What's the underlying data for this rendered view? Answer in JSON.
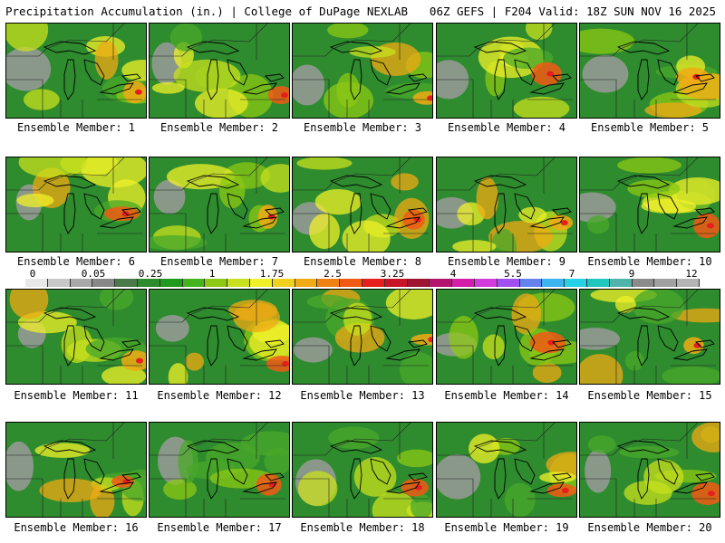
{
  "header": {
    "title": "Precipitation Accumulation (in.) | College of DuPage NEXLAB",
    "run_info": "06Z GEFS | F204 Valid: 18Z SUN NOV 16 2025"
  },
  "colorbar": {
    "labels": [
      "0",
      "0.05",
      "0.25",
      "1",
      "1.75",
      "2.5",
      "3.25",
      "4",
      "5.5",
      "7",
      "9",
      "12"
    ],
    "colors": [
      "#e8e8e8",
      "#c8c8c8",
      "#a8a8a8",
      "#888888",
      "#4a7a4a",
      "#2e8b2e",
      "#1e9a1e",
      "#46b41e",
      "#8cc814",
      "#c8e01e",
      "#f0f028",
      "#f0d21e",
      "#f0aa14",
      "#f08214",
      "#f05a14",
      "#e61e1e",
      "#c81428",
      "#a01432",
      "#b4146e",
      "#d21eaa",
      "#d23cdc",
      "#a050f0",
      "#6482f0",
      "#3cb4f0",
      "#28d2e6",
      "#1ec8be",
      "#50b4aa",
      "#8c8c8c",
      "#a0a0a0",
      "#b4b4b4"
    ]
  },
  "panels": [
    {
      "caption": "Ensemble Member: 1"
    },
    {
      "caption": "Ensemble Member: 2"
    },
    {
      "caption": "Ensemble Member: 3"
    },
    {
      "caption": "Ensemble Member: 4"
    },
    {
      "caption": "Ensemble Member: 5"
    },
    {
      "caption": "Ensemble Member: 6"
    },
    {
      "caption": "Ensemble Member: 7"
    },
    {
      "caption": "Ensemble Member: 8"
    },
    {
      "caption": "Ensemble Member: 9"
    },
    {
      "caption": "Ensemble Member: 10"
    },
    {
      "caption": "Ensemble Member: 11"
    },
    {
      "caption": "Ensemble Member: 12"
    },
    {
      "caption": "Ensemble Member: 13"
    },
    {
      "caption": "Ensemble Member: 14"
    },
    {
      "caption": "Ensemble Member: 15"
    },
    {
      "caption": "Ensemble Member: 16"
    },
    {
      "caption": "Ensemble Member: 17"
    },
    {
      "caption": "Ensemble Member: 18"
    },
    {
      "caption": "Ensemble Member: 19"
    },
    {
      "caption": "Ensemble Member: 20"
    }
  ]
}
